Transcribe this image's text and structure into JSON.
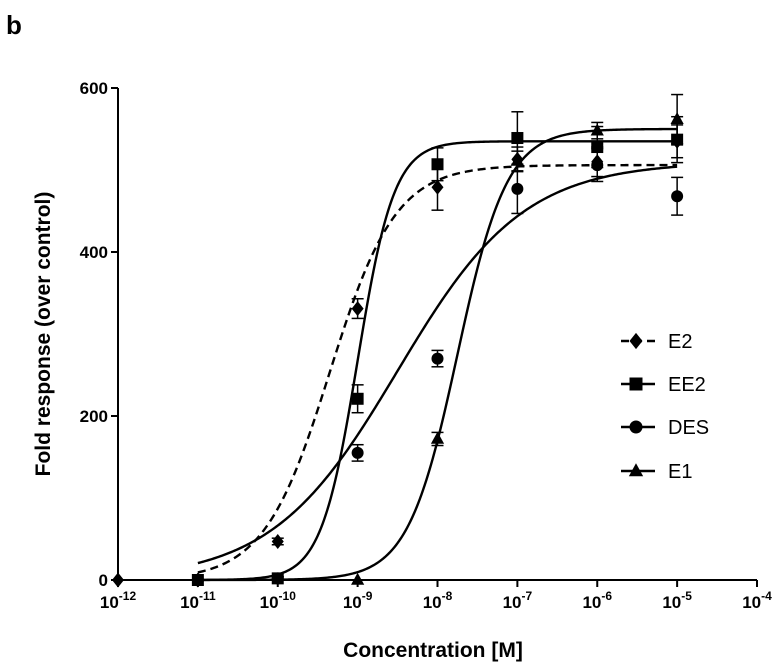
{
  "chart_data": {
    "type": "scatter",
    "panel_label": "b",
    "title": "",
    "xlabel": "Concentration [M]",
    "ylabel": "Fold response (over control)",
    "x_scale": "log",
    "xlim": [
      1e-12,
      0.0001
    ],
    "ylim": [
      0,
      600
    ],
    "x_ticks": [
      {
        "value": 1e-12,
        "base": "10",
        "exp": "-12"
      },
      {
        "value": 1e-11,
        "base": "10",
        "exp": "-11"
      },
      {
        "value": 1e-10,
        "base": "10",
        "exp": "-10"
      },
      {
        "value": 1e-09,
        "base": "10",
        "exp": "-9"
      },
      {
        "value": 1e-08,
        "base": "10",
        "exp": "-8"
      },
      {
        "value": 1e-07,
        "base": "10",
        "exp": "-7"
      },
      {
        "value": 1e-06,
        "base": "10",
        "exp": "-6"
      },
      {
        "value": 1e-05,
        "base": "10",
        "exp": "-5"
      },
      {
        "value": 0.0001,
        "base": "10",
        "exp": "-4"
      }
    ],
    "y_ticks": [
      {
        "value": 0,
        "label": "0"
      },
      {
        "value": 200,
        "label": "200"
      },
      {
        "value": 400,
        "label": "400"
      },
      {
        "value": 600,
        "label": "600"
      }
    ],
    "grid": false,
    "legend_position": "right",
    "series": [
      {
        "name": "E2",
        "marker": "diamond",
        "line_style": "dashed",
        "points": [
          {
            "x": 1e-12,
            "y": 0,
            "err": 0
          },
          {
            "x": 1e-11,
            "y": 0,
            "err": 0
          },
          {
            "x": 1e-10,
            "y": 47,
            "err": 4
          },
          {
            "x": 1e-09,
            "y": 331,
            "err": 12
          },
          {
            "x": 1e-08,
            "y": 479,
            "err": 28
          },
          {
            "x": 1e-07,
            "y": 513,
            "err": 15
          },
          {
            "x": 1e-06,
            "y": 510,
            "err": 18
          },
          {
            "x": 1e-05,
            "y": 535,
            "err": 20
          }
        ],
        "fit": {
          "bottom": 0,
          "top": 506,
          "log_ec50": -9.35,
          "hill": 1.05
        }
      },
      {
        "name": "EE2",
        "marker": "square",
        "line_style": "solid",
        "points": [
          {
            "x": 1e-11,
            "y": 0,
            "err": 0
          },
          {
            "x": 1e-10,
            "y": 2,
            "err": 2
          },
          {
            "x": 1e-09,
            "y": 221,
            "err": 17
          },
          {
            "x": 1e-08,
            "y": 507,
            "err": 20
          },
          {
            "x": 1e-07,
            "y": 539,
            "err": 32
          },
          {
            "x": 1e-06,
            "y": 528,
            "err": 25
          },
          {
            "x": 1e-05,
            "y": 537,
            "err": 28
          }
        ],
        "fit": {
          "bottom": 0,
          "top": 535,
          "log_ec50": -9.0,
          "hill": 1.9
        }
      },
      {
        "name": "DES",
        "marker": "circle",
        "line_style": "solid",
        "points": [
          {
            "x": 1e-11,
            "y": 0,
            "err": 0
          },
          {
            "x": 1e-10,
            "y": 2,
            "err": 2
          },
          {
            "x": 1e-09,
            "y": 155,
            "err": 10
          },
          {
            "x": 1e-08,
            "y": 270,
            "err": 10
          },
          {
            "x": 1e-07,
            "y": 477,
            "err": 30
          },
          {
            "x": 1e-06,
            "y": 506,
            "err": 20
          },
          {
            "x": 1e-05,
            "y": 468,
            "err": 23
          }
        ],
        "fit": {
          "bottom": 0,
          "top": 510,
          "log_ec50": -8.5,
          "hill": 0.55
        }
      },
      {
        "name": "E1",
        "marker": "triangle",
        "line_style": "solid",
        "points": [
          {
            "x": 1e-09,
            "y": 0,
            "err": 0
          },
          {
            "x": 1e-08,
            "y": 172,
            "err": 8
          },
          {
            "x": 1e-07,
            "y": 511,
            "err": 12
          },
          {
            "x": 1e-06,
            "y": 548,
            "err": 10
          },
          {
            "x": 1e-05,
            "y": 562,
            "err": 30
          }
        ],
        "fit": {
          "bottom": 0,
          "top": 550,
          "log_ec50": -7.75,
          "hill": 1.4
        }
      }
    ]
  }
}
